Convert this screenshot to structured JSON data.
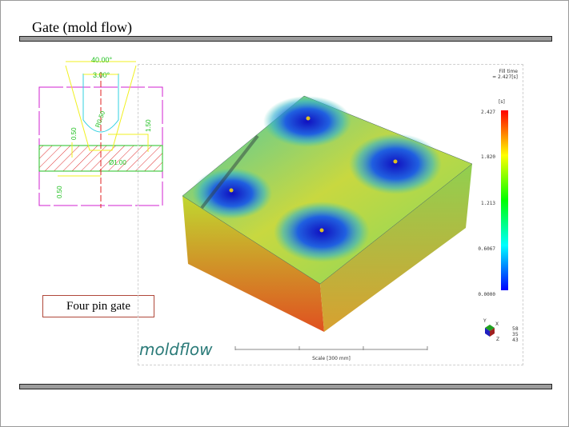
{
  "slide": {
    "title": "Gate (mold flow)",
    "caption": "Four pin gate"
  },
  "gate_drawing": {
    "dimensions": [
      "40.00°",
      "3.00°",
      "R0.50",
      "1.50",
      "0.50",
      "Ø1.00",
      "0.50"
    ]
  },
  "moldflow": {
    "logo": "moldflow",
    "result_title": "Fill time",
    "result_value": "= 2.427[s]",
    "unit": "[s]",
    "legend_ticks": [
      "2.427",
      "1.820",
      "1.213",
      "0.6067",
      "0.0000"
    ],
    "legend_colors": [
      "#ff0000",
      "#ffff00",
      "#00ff00",
      "#00ffff",
      "#0000ff"
    ],
    "axes": {
      "y": "Y",
      "x": "X",
      "z": "Z"
    },
    "view_angles": [
      "58",
      "35",
      "43"
    ],
    "scale_label": "Scale [300 mm]"
  }
}
